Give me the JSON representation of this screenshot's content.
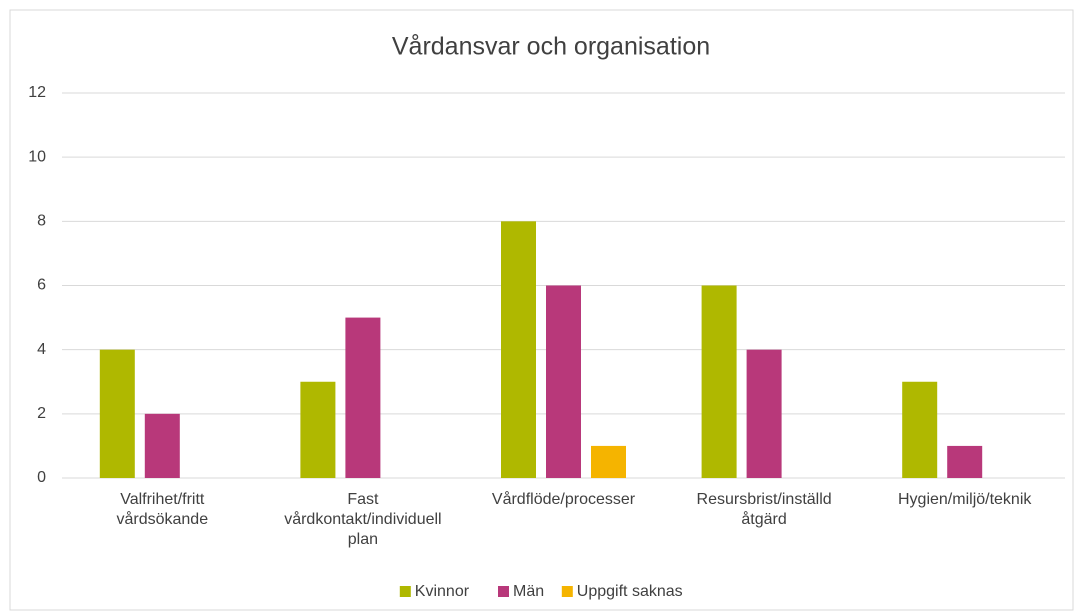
{
  "chart_data": {
    "type": "bar",
    "title": "Vårdansvar och organisation",
    "categories": [
      [
        "Valfrihet/fritt",
        "vårdsökande"
      ],
      [
        "Fast",
        "vårdkontakt/individuell",
        "plan"
      ],
      [
        "Vårdflöde/processer"
      ],
      [
        "Resursbrist/inställd",
        "åtgärd"
      ],
      [
        "Hygien/miljö/teknik"
      ]
    ],
    "series": [
      {
        "name": "Kvinnor",
        "color": "#afb800",
        "values": [
          4,
          3,
          8,
          6,
          3
        ]
      },
      {
        "name": "Män",
        "color": "#b8387a",
        "values": [
          2,
          5,
          6,
          4,
          1
        ]
      },
      {
        "name": "Uppgift saknas",
        "color": "#f5b400",
        "values": [
          null,
          null,
          1,
          null,
          null
        ]
      }
    ],
    "ylim": [
      0,
      12
    ],
    "yticks": [
      0,
      2,
      4,
      6,
      8,
      10,
      12
    ],
    "grid": true,
    "legend": "bottom"
  }
}
